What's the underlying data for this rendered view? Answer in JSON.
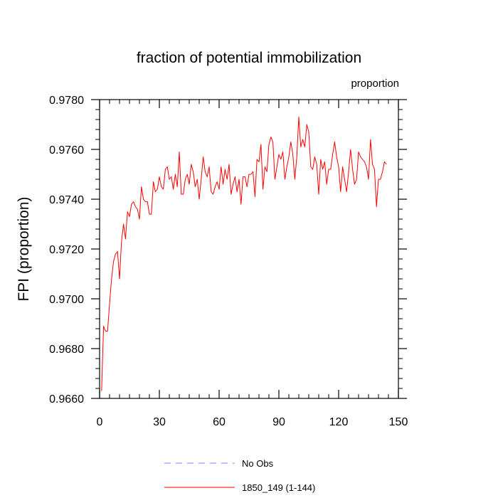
{
  "chart_data": {
    "type": "line",
    "title": "fraction of potential immobilization",
    "units": "proportion",
    "ylabel": "FPI  (proportion)",
    "xlabel": "",
    "xlim": [
      0,
      150
    ],
    "ylim": [
      0.966,
      0.978
    ],
    "x_ticks": [
      0,
      30,
      60,
      90,
      120,
      150
    ],
    "x_tick_labels": [
      "0",
      "30",
      "60",
      "90",
      "120",
      "150"
    ],
    "x_minor_step": 5,
    "y_ticks": [
      0.966,
      0.968,
      0.97,
      0.972,
      0.974,
      0.976,
      0.978
    ],
    "y_tick_labels": [
      "0.9660",
      "0.9680",
      "0.9700",
      "0.9720",
      "0.9740",
      "0.9760",
      "0.9780"
    ],
    "y_minor_step": 0.0004,
    "grid": false,
    "legend": [
      {
        "label": "No Obs",
        "color": "#8080ff",
        "style": "dashed"
      },
      {
        "label": "1850_149 (1-144)",
        "color": "#ff0000",
        "style": "solid"
      }
    ],
    "series": [
      {
        "name": "1850_149 (1-144)",
        "color": "#ff0000",
        "x_start": 1,
        "values": [
          0.9663,
          0.9689,
          0.9687,
          0.9687,
          0.9698,
          0.9708,
          0.9715,
          0.9718,
          0.9719,
          0.9708,
          0.9723,
          0.973,
          0.9724,
          0.9735,
          0.9733,
          0.9738,
          0.9739,
          0.9737,
          0.9736,
          0.9732,
          0.9745,
          0.974,
          0.9739,
          0.9739,
          0.9734,
          0.9734,
          0.9747,
          0.9743,
          0.9744,
          0.9749,
          0.9745,
          0.9744,
          0.9752,
          0.9753,
          0.9748,
          0.9749,
          0.9744,
          0.975,
          0.9745,
          0.9759,
          0.9742,
          0.9742,
          0.9748,
          0.975,
          0.9746,
          0.9754,
          0.9751,
          0.9745,
          0.9748,
          0.974,
          0.9748,
          0.9757,
          0.9751,
          0.9749,
          0.9753,
          0.9743,
          0.9742,
          0.9745,
          0.9747,
          0.9744,
          0.9753,
          0.9746,
          0.9752,
          0.9748,
          0.9754,
          0.9742,
          0.9746,
          0.9749,
          0.9743,
          0.9748,
          0.9738,
          0.9749,
          0.9749,
          0.9745,
          0.975,
          0.975,
          0.9751,
          0.9741,
          0.9756,
          0.9755,
          0.9762,
          0.9744,
          0.9753,
          0.9751,
          0.9762,
          0.9765,
          0.9763,
          0.9748,
          0.9753,
          0.9758,
          0.9756,
          0.9759,
          0.9748,
          0.9753,
          0.9757,
          0.9763,
          0.9758,
          0.9748,
          0.9757,
          0.9773,
          0.9761,
          0.9764,
          0.9761,
          0.977,
          0.9767,
          0.9753,
          0.9752,
          0.9757,
          0.9754,
          0.9742,
          0.9756,
          0.9752,
          0.9755,
          0.9746,
          0.9752,
          0.9752,
          0.9758,
          0.9763,
          0.9757,
          0.9753,
          0.9743,
          0.9753,
          0.9748,
          0.9743,
          0.9751,
          0.976,
          0.9752,
          0.9746,
          0.9748,
          0.9759,
          0.9757,
          0.9756,
          0.9755,
          0.9753,
          0.9748,
          0.9764,
          0.9754,
          0.9752,
          0.9737,
          0.9748,
          0.9748,
          0.9751,
          0.9755,
          0.9754
        ]
      }
    ]
  }
}
